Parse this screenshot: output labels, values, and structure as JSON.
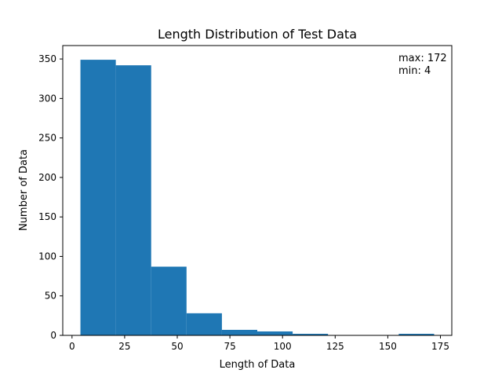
{
  "chart_data": {
    "type": "bar",
    "title": "Length Distribution of Test Data",
    "xlabel": "Length of Data",
    "ylabel": "Number of Data",
    "xlim": [
      -4.4,
      180.4
    ],
    "ylim": [
      0,
      367
    ],
    "xticks": [
      0,
      25,
      50,
      75,
      100,
      125,
      150,
      175
    ],
    "yticks": [
      0,
      50,
      100,
      150,
      200,
      250,
      300,
      350
    ],
    "bins": [
      {
        "start": 4.0,
        "end": 20.8,
        "count": 349
      },
      {
        "start": 20.8,
        "end": 37.6,
        "count": 342
      },
      {
        "start": 37.6,
        "end": 54.4,
        "count": 87
      },
      {
        "start": 54.4,
        "end": 71.2,
        "count": 28
      },
      {
        "start": 71.2,
        "end": 88.0,
        "count": 7
      },
      {
        "start": 88.0,
        "end": 104.8,
        "count": 5
      },
      {
        "start": 104.8,
        "end": 121.6,
        "count": 2
      },
      {
        "start": 121.6,
        "end": 138.4,
        "count": 0
      },
      {
        "start": 138.4,
        "end": 155.2,
        "count": 0
      },
      {
        "start": 155.2,
        "end": 172.0,
        "count": 2
      }
    ],
    "annotation": {
      "max_label": "max: 172",
      "min_label": "min: 4"
    },
    "bar_color": "#1f77b4",
    "grid": false,
    "legend": "none"
  }
}
